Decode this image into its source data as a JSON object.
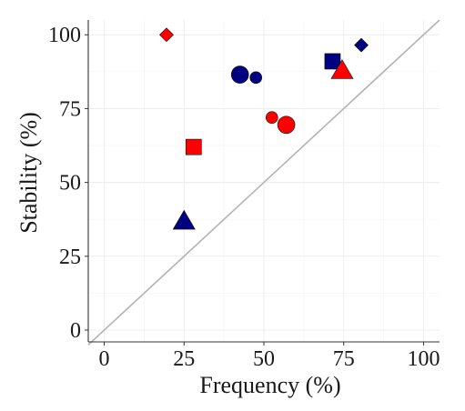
{
  "chart_data": {
    "type": "scatter",
    "title": "",
    "xlabel": "Frequency (%)",
    "ylabel": "Stability (%)",
    "xlim": [
      -5,
      105
    ],
    "ylim": [
      -4,
      105
    ],
    "x_ticks": [
      0,
      25,
      50,
      75,
      100
    ],
    "y_ticks": [
      0,
      25,
      50,
      75,
      100
    ],
    "x_tick_labels": [
      "0",
      "25",
      "50",
      "75",
      "100"
    ],
    "y_tick_labels": [
      "0",
      "25",
      "50",
      "75",
      "100"
    ],
    "grid": true,
    "reference_line": {
      "type": "identity",
      "from": [
        -5,
        -5
      ],
      "to": [
        105,
        105
      ],
      "color": "#b3b3b3"
    },
    "colors": {
      "blue": "#000080",
      "red": "#ff0000"
    },
    "points": [
      {
        "x": 19.5,
        "y": 100,
        "shape": "diamond",
        "color": "red",
        "size": "medium"
      },
      {
        "x": 80.5,
        "y": 96.5,
        "shape": "diamond",
        "color": "blue",
        "size": "medium"
      },
      {
        "x": 71.5,
        "y": 91,
        "shape": "square",
        "color": "blue",
        "size": "large"
      },
      {
        "x": 74.5,
        "y": 88,
        "shape": "triangle",
        "color": "red",
        "size": "large"
      },
      {
        "x": 42.5,
        "y": 86.5,
        "shape": "circle",
        "color": "blue",
        "size": "large"
      },
      {
        "x": 47.5,
        "y": 85.5,
        "shape": "circle",
        "color": "blue",
        "size": "small"
      },
      {
        "x": 52.5,
        "y": 72,
        "shape": "circle",
        "color": "red",
        "size": "small"
      },
      {
        "x": 57.0,
        "y": 69.5,
        "shape": "circle",
        "color": "red",
        "size": "large"
      },
      {
        "x": 28.0,
        "y": 62,
        "shape": "square",
        "color": "red",
        "size": "large"
      },
      {
        "x": 25.0,
        "y": 37,
        "shape": "triangle",
        "color": "blue",
        "size": "large"
      }
    ]
  }
}
